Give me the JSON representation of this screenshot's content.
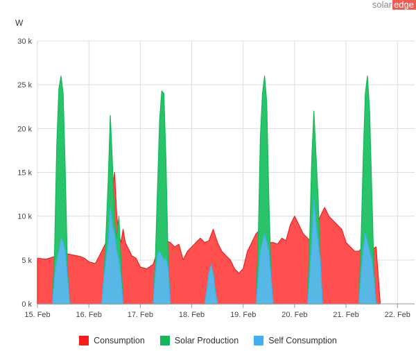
{
  "logo": {
    "text_solar": "solar",
    "text_edge": "edge"
  },
  "chart_data": {
    "type": "area",
    "ylabel": "W",
    "ylim": [
      0,
      30000
    ],
    "yticks": [
      0,
      5000,
      10000,
      15000,
      20000,
      25000,
      30000
    ],
    "ytick_labels": [
      "0 k",
      "5 k",
      "10 k",
      "15 k",
      "20 k",
      "25 k",
      "30 k"
    ],
    "xlim": [
      "15. Feb 00:00",
      "22. Feb 08:00"
    ],
    "xtick_labels": [
      "15. Feb",
      "16. Feb",
      "17. Feb",
      "18. Feb",
      "19. Feb",
      "20. Feb",
      "21. Feb",
      "22. Feb"
    ],
    "grid": true,
    "legend_position": "bottom",
    "series_colors": {
      "consumption": "#ff5050",
      "production": "#29c46a",
      "self_consumption": "#57b8e6"
    },
    "series": [
      {
        "name": "Consumption",
        "color": "#ff1a1a",
        "x_hours": [
          0,
          4,
          8,
          10,
          12,
          14,
          16,
          18,
          20,
          22,
          24,
          27,
          30,
          32,
          34,
          36,
          37,
          38,
          39,
          40,
          41,
          42,
          43,
          44,
          46,
          48,
          51,
          54,
          56,
          58,
          60,
          62,
          64,
          66,
          68,
          70,
          72,
          74,
          76,
          78,
          80,
          82,
          84,
          86,
          88,
          90,
          92,
          94,
          96,
          98,
          100,
          102,
          104,
          106,
          108,
          110,
          112,
          114,
          116,
          118,
          120,
          122,
          124,
          126,
          128,
          130,
          132,
          134,
          136,
          138,
          140,
          142,
          144,
          146,
          148,
          150,
          152,
          154,
          155,
          156,
          158,
          160
        ],
        "values": [
          5200,
          5100,
          5400,
          5500,
          5600,
          5700,
          5600,
          5500,
          5400,
          5200,
          4800,
          4600,
          6000,
          7000,
          11000,
          15000,
          10000,
          8000,
          7000,
          8500,
          7000,
          6500,
          6000,
          5500,
          5200,
          4200,
          4000,
          4500,
          6000,
          7000,
          7200,
          7000,
          6500,
          6800,
          5000,
          6000,
          6500,
          7000,
          7500,
          7000,
          7200,
          8500,
          7000,
          6000,
          5500,
          5000,
          4000,
          3500,
          4000,
          6000,
          7000,
          8000,
          8500,
          7500,
          7000,
          7000,
          6800,
          7500,
          7200,
          9000,
          10000,
          9000,
          8000,
          7500,
          7000,
          8500,
          10000,
          11000,
          10000,
          9500,
          9000,
          8500,
          7000,
          6500,
          6000,
          6000,
          6500,
          5500,
          4500,
          6200,
          6500,
          0
        ]
      },
      {
        "name": "Solar Production",
        "color": "#14b85a",
        "x_hours": [
          0,
          7,
          8,
          9,
          10,
          11,
          12,
          13,
          14,
          15,
          30,
          31,
          32,
          33,
          34,
          35,
          36,
          37,
          38,
          39,
          40,
          54,
          55,
          56,
          57,
          58,
          59,
          60,
          61,
          62,
          78,
          79,
          80,
          81,
          82,
          83,
          84,
          85,
          86,
          102,
          103,
          104,
          105,
          106,
          107,
          108,
          109,
          110,
          126,
          127,
          128,
          129,
          130,
          131,
          132,
          133,
          134,
          150,
          151,
          152,
          153,
          154,
          155,
          156,
          157,
          158,
          160
        ],
        "values": [
          0,
          0,
          6000,
          18000,
          24500,
          26000,
          24000,
          15000,
          4000,
          0,
          0,
          3000,
          8000,
          14000,
          21500,
          16000,
          9500,
          7500,
          10000,
          5000,
          0,
          0,
          5000,
          13000,
          21000,
          24300,
          24000,
          16000,
          5000,
          0,
          0,
          1500,
          3500,
          4500,
          3500,
          1500,
          0,
          0,
          0,
          0,
          7000,
          19000,
          24000,
          26000,
          23000,
          12000,
          3000,
          0,
          0,
          7000,
          16500,
          22000,
          17000,
          12000,
          5000,
          0,
          0,
          0,
          7000,
          16500,
          24000,
          26000,
          22000,
          13000,
          4000,
          0,
          0
        ]
      },
      {
        "name": "Self Consumption",
        "color": "#3fb1f2",
        "x_hours": [
          0,
          7,
          8,
          9,
          10,
          11,
          12,
          13,
          14,
          15,
          30,
          31,
          32,
          33,
          34,
          35,
          36,
          37,
          38,
          39,
          40,
          54,
          55,
          56,
          57,
          58,
          59,
          60,
          61,
          62,
          78,
          79,
          80,
          81,
          82,
          83,
          84,
          85,
          86,
          102,
          103,
          104,
          105,
          106,
          107,
          108,
          109,
          110,
          126,
          127,
          128,
          129,
          130,
          131,
          132,
          133,
          134,
          150,
          151,
          152,
          153,
          154,
          155,
          156,
          157,
          158,
          160
        ],
        "values": [
          0,
          0,
          3000,
          5000,
          6000,
          7500,
          7000,
          6000,
          3000,
          0,
          0,
          3000,
          5000,
          7000,
          11000,
          9000,
          8000,
          6000,
          5000,
          3000,
          0,
          0,
          3500,
          5500,
          6000,
          5500,
          5000,
          5200,
          4000,
          0,
          0,
          1500,
          3500,
          4500,
          3500,
          1500,
          0,
          0,
          0,
          0,
          3000,
          6000,
          7000,
          8000,
          7000,
          6000,
          3000,
          0,
          0,
          3000,
          7000,
          12000,
          9000,
          7000,
          5000,
          0,
          0,
          0,
          3500,
          6000,
          8000,
          7000,
          6000,
          5000,
          3000,
          0,
          0
        ]
      }
    ]
  }
}
